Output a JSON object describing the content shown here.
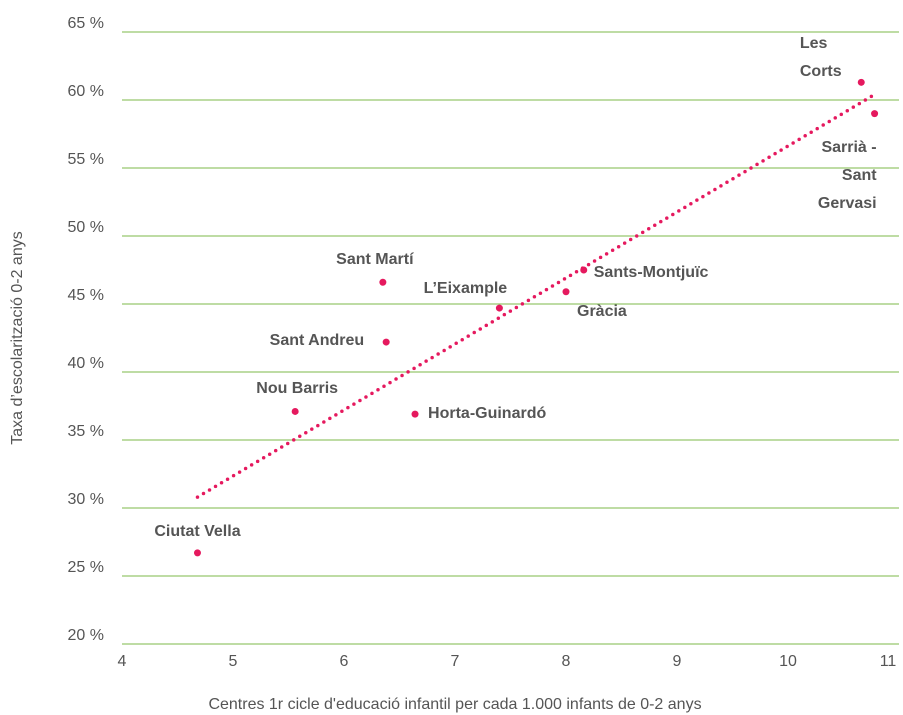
{
  "chart_data": {
    "type": "scatter",
    "x_label": "Centres 1r cicle d'educació infantil per cada 1.000 infants de 0-2 anys",
    "y_label": "Taxa d’escolarització 0-2 anys",
    "labels": [
      "Ciutat Vella",
      "Nou Barris",
      "Sant Andreu",
      "Sant Martí",
      "L’Eixample",
      "Horta-Guinardó",
      "Gràcia",
      "Sants-Montjuïc",
      "Sarrià -\nSant Gervasi",
      "Les Corts"
    ],
    "x": [
      4.68,
      5.56,
      6.38,
      6.35,
      7.4,
      6.64,
      8.0,
      8.16,
      10.78,
      10.66
    ],
    "values": [
      26.7,
      37.1,
      42.2,
      46.6,
      44.7,
      36.9,
      45.9,
      47.5,
      59.0,
      61.3
    ],
    "color": "#e5195e",
    "trendline": {
      "x": [
        4.68,
        10.8
      ],
      "values": [
        30.8,
        60.5
      ]
    },
    "xlim": [
      4,
      11
    ],
    "xticks": [
      4,
      5,
      6,
      7,
      8,
      9,
      10,
      11
    ],
    "ylim": [
      20,
      65
    ],
    "yticks": [
      {
        "value": 20,
        "label": "20 %"
      },
      {
        "value": 25,
        "label": "25 %"
      },
      {
        "value": 30,
        "label": "30 %"
      },
      {
        "value": 35,
        "label": "35 %"
      },
      {
        "value": 40,
        "label": "40 %"
      },
      {
        "value": 45,
        "label": "45 %"
      },
      {
        "value": 50,
        "label": "50 %"
      },
      {
        "value": 55,
        "label": "55 %"
      },
      {
        "value": 60,
        "label": "60 %"
      },
      {
        "value": 65,
        "label": "65 %"
      }
    ],
    "grid": true,
    "grid_color": "#7cb94a"
  }
}
